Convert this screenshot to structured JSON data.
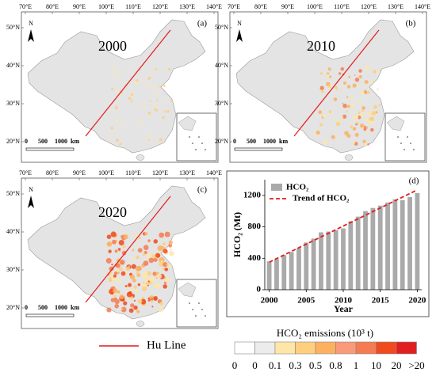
{
  "maps": {
    "panels": [
      {
        "year": "2000",
        "letter": "(a)"
      },
      {
        "year": "2010",
        "letter": "(b)"
      },
      {
        "year": "2020",
        "letter": "(c)"
      }
    ],
    "lon_labels": [
      "70°E",
      "80°E",
      "90°E",
      "100°E",
      "110°E",
      "120°E",
      "130°E",
      "140°E"
    ],
    "lat_labels": [
      "50°N",
      "40°N",
      "30°N",
      "20°N"
    ],
    "scale_labels": [
      "0",
      "500",
      "1000",
      "km"
    ],
    "north": "N"
  },
  "legend": {
    "hu_line": "Hu Line",
    "hu_color": "#e41a1c",
    "title": "HCO₂ emissions  (10³ t)",
    "labels": [
      "0",
      "0",
      "0.1",
      "0.3",
      "0.5",
      "0.8",
      "1",
      "10",
      "20",
      ">20"
    ],
    "colors": [
      "#ffffff",
      "#ececec",
      "#fde6a8",
      "#fdcf7e",
      "#fcb160",
      "#f99a7a",
      "#f57b52",
      "#f04a1e",
      "#e02020"
    ]
  },
  "chart_data": {
    "type": "bar",
    "panel_label": "(d)",
    "xlabel": "Year",
    "ylabel": "HCO₂ (Mt)",
    "x": [
      2000,
      2001,
      2002,
      2003,
      2004,
      2005,
      2006,
      2007,
      2008,
      2009,
      2010,
      2011,
      2012,
      2013,
      2014,
      2015,
      2016,
      2017,
      2018,
      2019,
      2020
    ],
    "series": [
      {
        "name": "HCO₂",
        "color": "#aaaaaa",
        "values": [
          360,
          390,
          440,
          480,
          530,
          600,
          650,
          730,
          740,
          760,
          780,
          870,
          930,
          1000,
          1040,
          1070,
          1110,
          1150,
          1140,
          1180,
          1230
        ]
      }
    ],
    "trend": {
      "name": "Trend of HCO₂",
      "color": "#e41a1c",
      "x": [
        2000,
        2020
      ],
      "values": [
        350,
        1270
      ]
    },
    "xlim": [
      1999.4,
      2020.6
    ],
    "xticks": [
      2000,
      2005,
      2010,
      2015,
      2020
    ],
    "ylim": [
      0,
      1400
    ],
    "yticks": [
      0,
      400,
      800,
      1200
    ]
  }
}
